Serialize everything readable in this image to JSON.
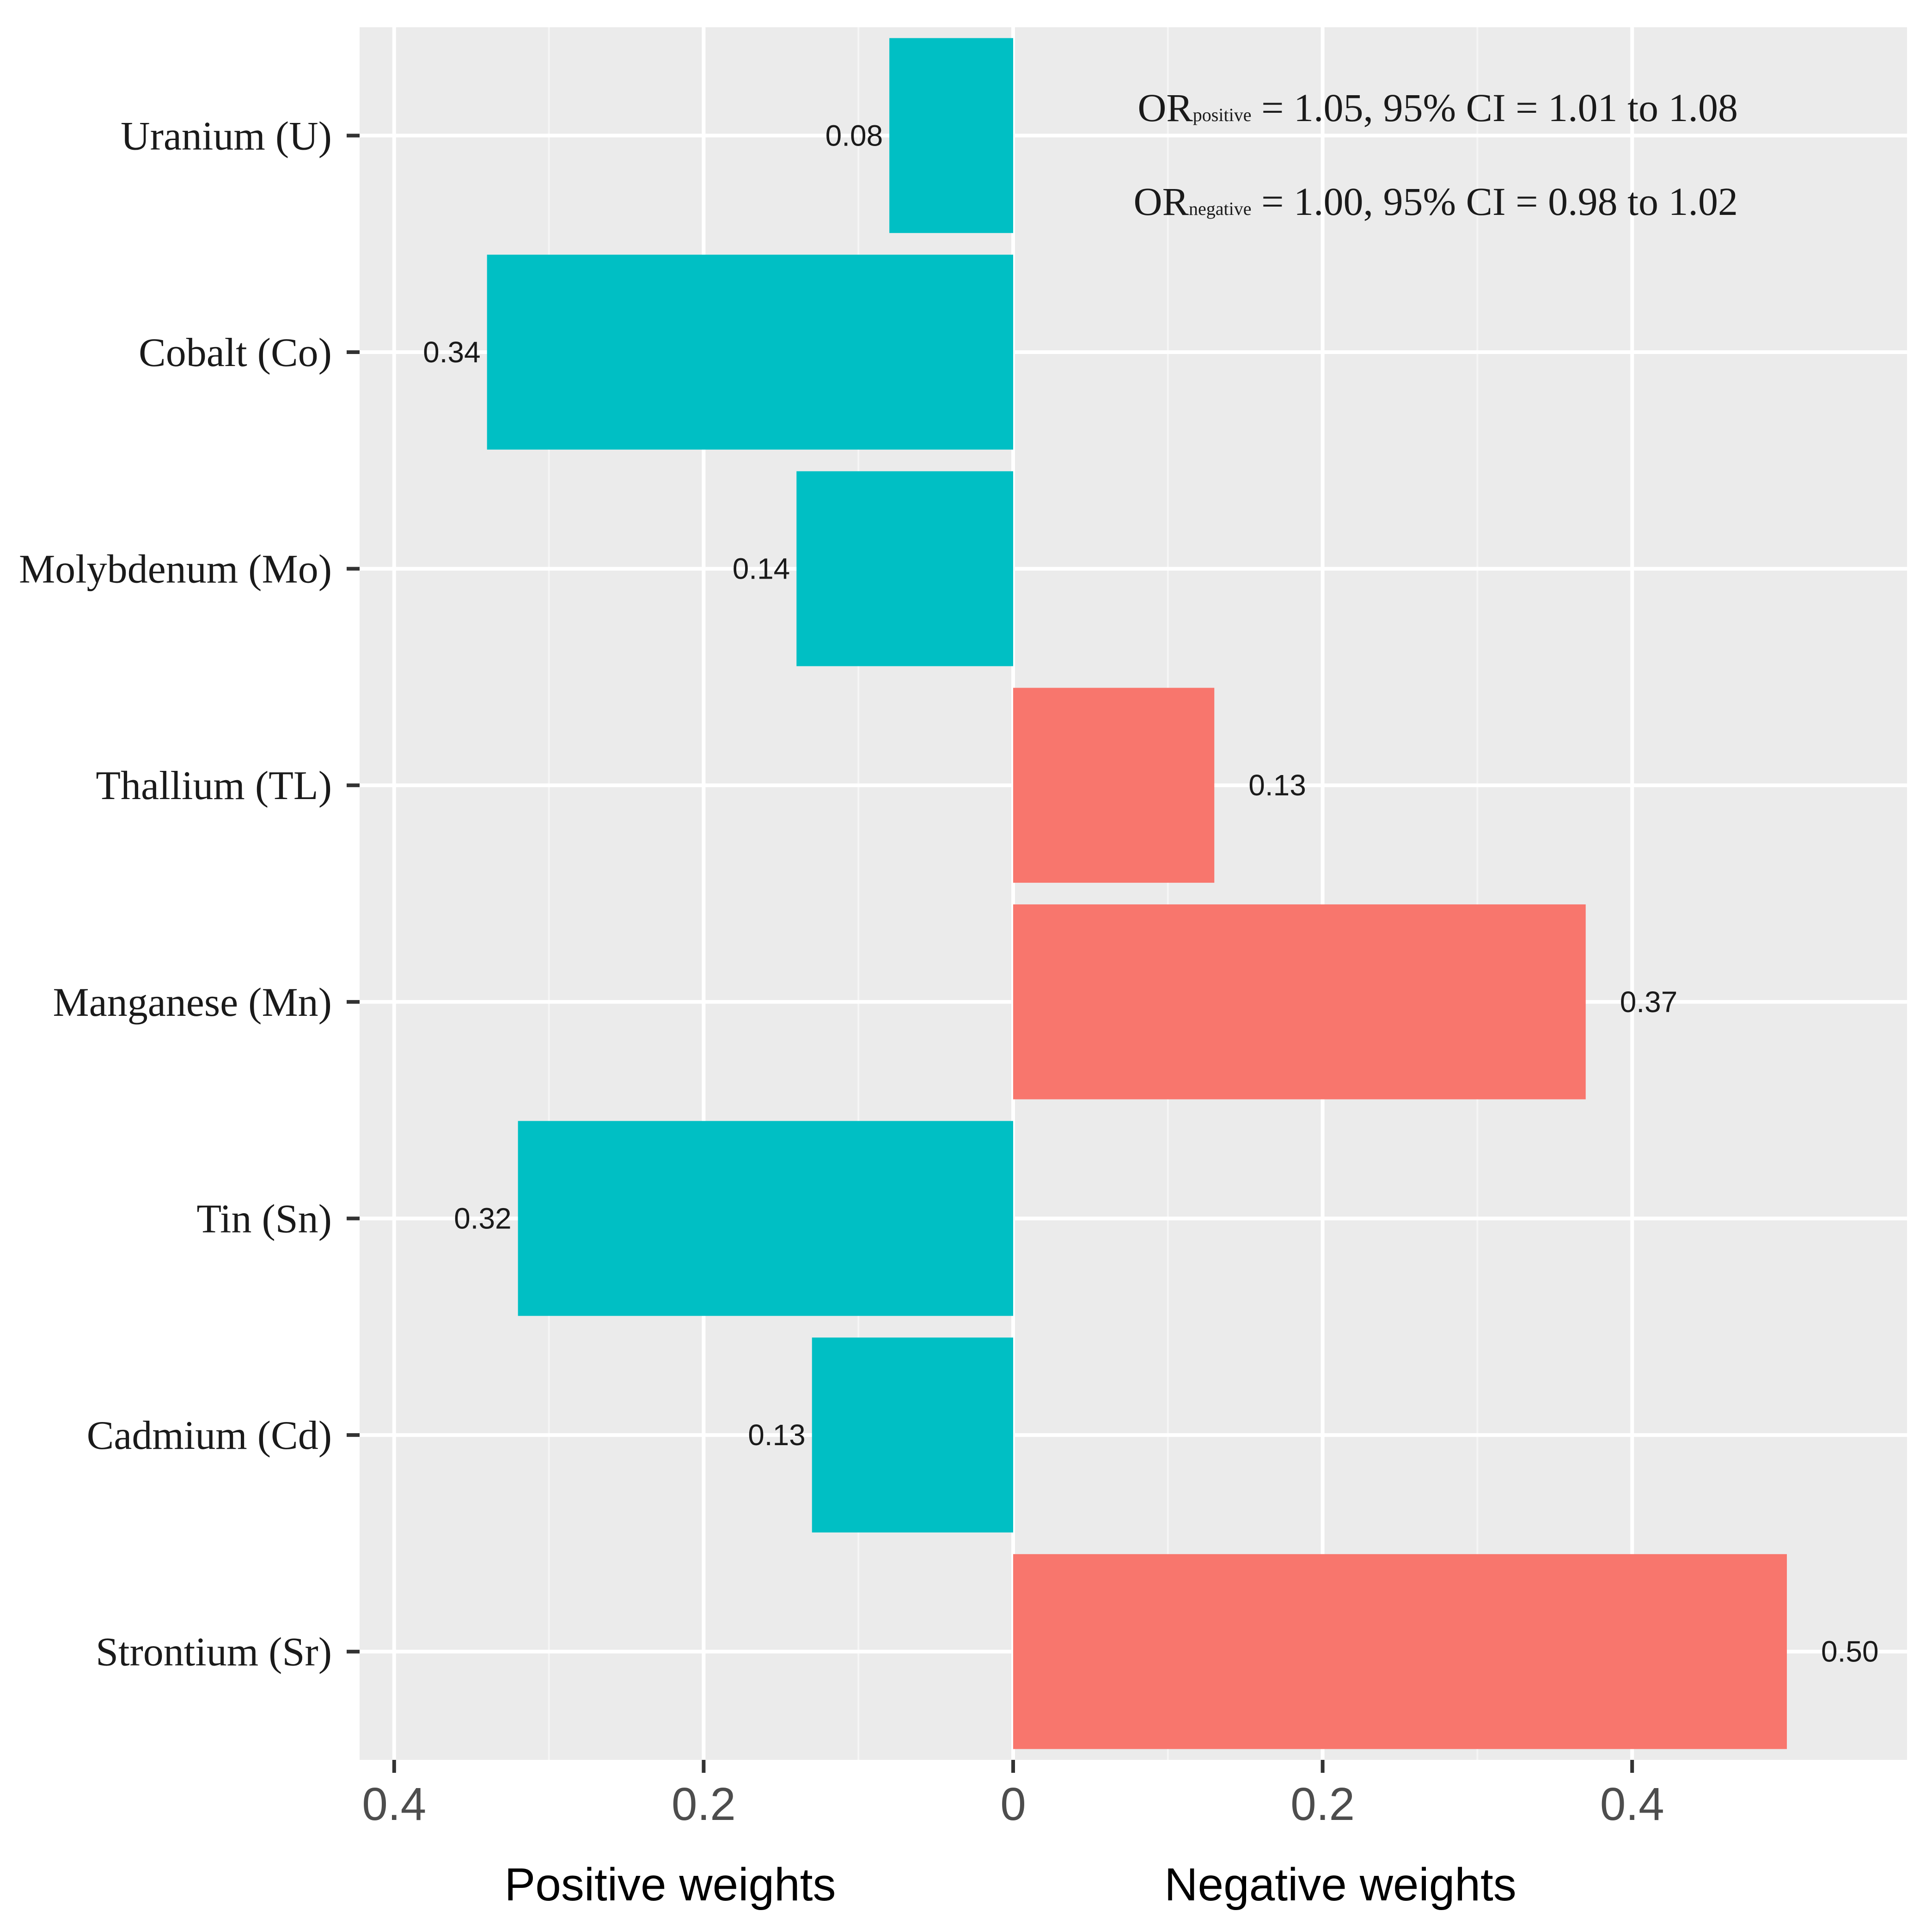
{
  "chart_data": {
    "type": "bar",
    "orientation": "horizontal-diverging",
    "categories": [
      "Uranium (U)",
      "Cobalt (Co)",
      "Molybdenum (Mo)",
      "Thallium (TL)",
      "Manganese (Mn)",
      "Tin (Sn)",
      "Cadmium (Cd)",
      "Strontium (Sr)"
    ],
    "series": [
      {
        "name": "Positive weights",
        "side": "left",
        "color": "#00BFC4",
        "values": [
          0.08,
          0.34,
          0.14,
          null,
          null,
          0.32,
          0.13,
          null
        ],
        "labels": [
          "0.08",
          "0.34",
          "0.14",
          null,
          null,
          "0.32",
          "0.13",
          null
        ]
      },
      {
        "name": "Negative weights",
        "side": "right",
        "color": "#F8766D",
        "values": [
          null,
          null,
          null,
          0.13,
          0.37,
          null,
          null,
          0.5
        ],
        "labels": [
          null,
          null,
          null,
          "0.13",
          "0.37",
          null,
          null,
          "0.50"
        ]
      }
    ],
    "xlim": [
      -0.42,
      0.58
    ],
    "tick_values": [
      -0.4,
      -0.2,
      0,
      0.2,
      0.4
    ],
    "tick_labels": [
      "0.4",
      "0.2",
      "0",
      "0.2",
      "0.4"
    ],
    "xlabel_left": "Positive weights",
    "xlabel_right": "Negative weights",
    "grid": true,
    "panel_background": "#EBEBEB",
    "annotations": [
      {
        "prefix": "OR",
        "subscript": "positive",
        "text": "= 1.05, 95% CI = 1.01 to 1.08"
      },
      {
        "prefix": "OR",
        "subscript": "negative",
        "text": "= 1.00, 95% CI = 0.98 to 1.02"
      }
    ]
  }
}
